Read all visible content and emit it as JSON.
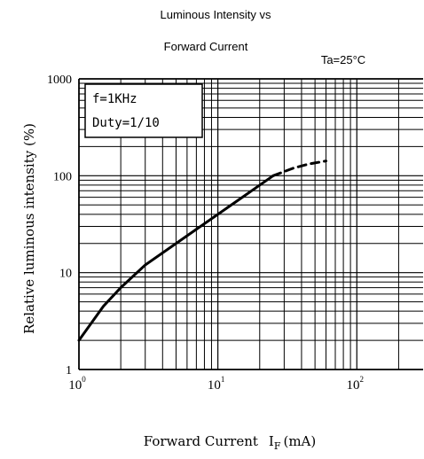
{
  "chart_data": {
    "type": "line",
    "title_line1": "Luminous Intensity vs",
    "title_line2": "Forward Current",
    "condition": "Ta=25°C",
    "annotation": {
      "line1": "f=1KHz",
      "line2": "Duty=1/10"
    },
    "ylabel": "Relative luminous intensity (%)",
    "xlabel": {
      "text": "Forward Current",
      "symbol": "I",
      "subscript": "F",
      "unit": "(mA)"
    },
    "x_scale": "log",
    "y_scale": "log",
    "xlim": [
      1,
      300
    ],
    "ylim": [
      1,
      1000
    ],
    "grid": true,
    "x_ticks": [
      {
        "value": 1,
        "base": "10",
        "exp": "0"
      },
      {
        "value": 10,
        "base": "10",
        "exp": "1"
      },
      {
        "value": 100,
        "base": "10",
        "exp": "2"
      }
    ],
    "y_ticks": [
      {
        "value": 1,
        "label": "1"
      },
      {
        "value": 10,
        "label": "10"
      },
      {
        "value": 100,
        "label": "100"
      },
      {
        "value": 1000,
        "label": "1000"
      }
    ],
    "series": [
      {
        "style": "solid",
        "points": [
          [
            1,
            2
          ],
          [
            1.5,
            4.5
          ],
          [
            2,
            7
          ],
          [
            3,
            12
          ],
          [
            5,
            20
          ],
          [
            7,
            28
          ],
          [
            10,
            40
          ],
          [
            15,
            60
          ],
          [
            20,
            80
          ],
          [
            25,
            100
          ]
        ]
      },
      {
        "style": "dashed",
        "points": [
          [
            25,
            100
          ],
          [
            35,
            120
          ],
          [
            45,
            132
          ],
          [
            60,
            142
          ]
        ]
      }
    ]
  }
}
